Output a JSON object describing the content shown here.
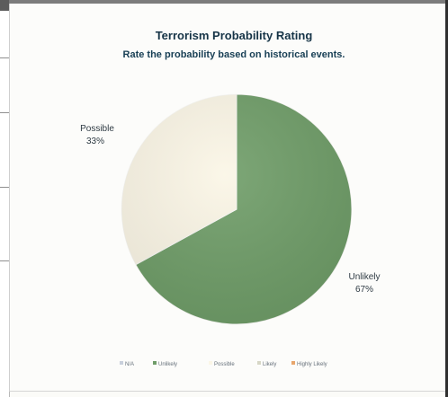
{
  "chart_data": {
    "type": "pie",
    "title": "Terrorism Probability Rating",
    "subtitle": "Rate the probability based on historical events.",
    "slices": [
      {
        "label": "Unlikely",
        "value": 67,
        "display": "67%",
        "color": "#6f9d68"
      },
      {
        "label": "Possible",
        "value": 33,
        "display": "33%",
        "color": "#fbf6e6"
      }
    ],
    "legend": {
      "placement": "bottom",
      "items": [
        {
          "label": "N/A",
          "color": "#c9d0dc"
        },
        {
          "label": "Unlikely",
          "color": "#6f9d68"
        },
        {
          "label": "Possible",
          "color": "#fbf6e6"
        },
        {
          "label": "Likely",
          "color": "#d7d7c6"
        },
        {
          "label": "Highly Likely",
          "color": "#e8a66c"
        }
      ]
    }
  }
}
